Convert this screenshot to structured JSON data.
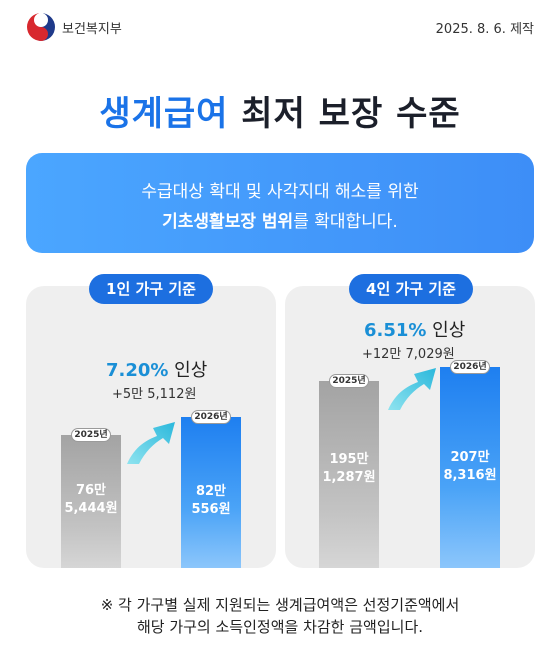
{
  "header": {
    "org": "보건복지부",
    "date": "2025. 8. 6. 제작"
  },
  "title": {
    "highlight": "생계급여",
    "rest": " 최저 보장 수준"
  },
  "banner": {
    "line1": "수급대상 확대 및 사각지대 해소를 위한",
    "line2_bold": "기초생활보장 범위",
    "line2_rest": "를 확대합니다."
  },
  "cards": [
    {
      "label": "1인 가구 기준",
      "rate": "7.20%",
      "rate_suffix": " 인상",
      "diff": "+5만 5,112원",
      "bars": [
        {
          "year": "2025년",
          "line1": "76만",
          "line2": "5,444원"
        },
        {
          "year": "2026년",
          "line1": "82만",
          "line2": "556원"
        }
      ]
    },
    {
      "label": "4인 가구 기준",
      "rate": "6.51%",
      "rate_suffix": " 인상",
      "diff": "+12만 7,029원",
      "bars": [
        {
          "year": "2025년",
          "line1": "195만",
          "line2": "1,287원"
        },
        {
          "year": "2026년",
          "line1": "207만",
          "line2": "8,316원"
        }
      ]
    }
  ],
  "footnote": {
    "line1": "※ 각 가구별 실제 지원되는 생계급여액은 선정기준액에서",
    "line2": "해당 가구의 소득인정액을 차감한 금액입니다."
  },
  "colors": {
    "accent": "#1a73e8",
    "bar_blue": "#1e7ff0",
    "bar_gray": "#a3a3a3",
    "arrow": "#36c3e0"
  }
}
